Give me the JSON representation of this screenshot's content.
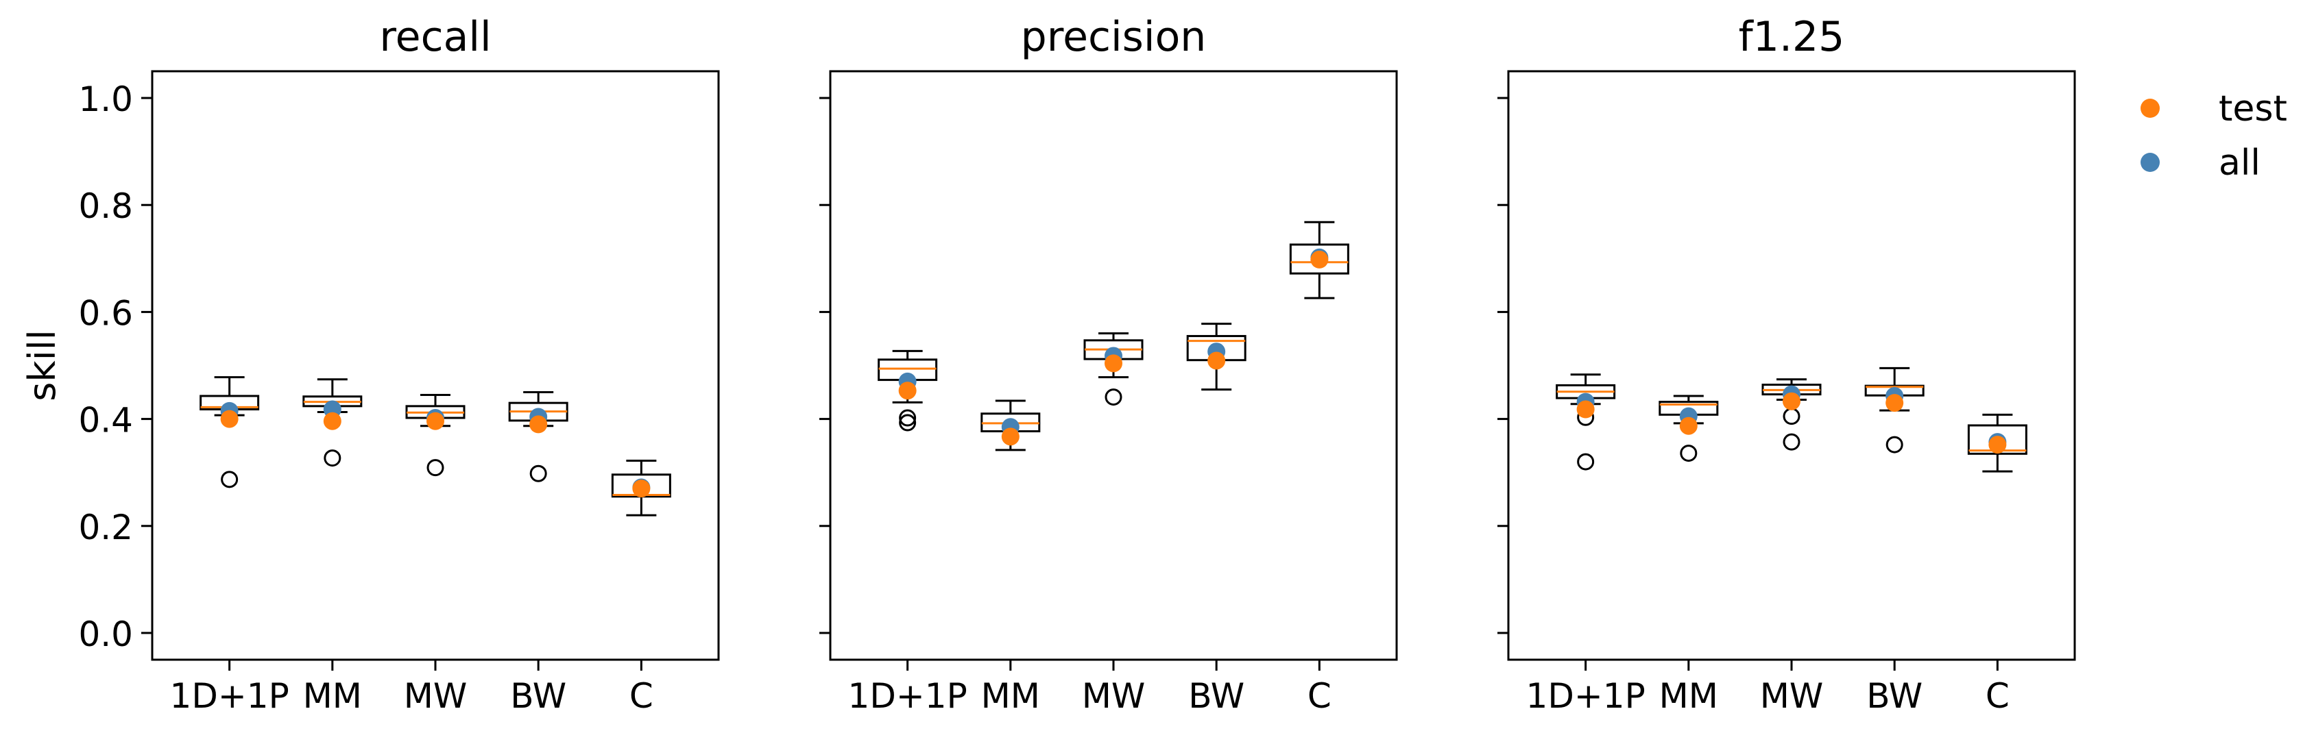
{
  "chart_data": [
    {
      "type": "box",
      "title": "recall",
      "ylabel": "skill",
      "ylim": [
        -0.05,
        1.05
      ],
      "yticks": [
        0.0,
        0.2,
        0.4,
        0.6,
        0.8,
        1.0
      ],
      "ytick_labels": [
        "0.0",
        "0.2",
        "0.4",
        "0.6",
        "0.8",
        "1.0"
      ],
      "categories": [
        "1D+1P",
        "MM",
        "MW",
        "BW",
        "C"
      ],
      "boxes": [
        {
          "whislo": 0.407,
          "q1": 0.418,
          "med": 0.422,
          "q3": 0.443,
          "whishi": 0.478,
          "fliers": [
            0.287
          ]
        },
        {
          "whislo": 0.413,
          "q1": 0.424,
          "med": 0.432,
          "q3": 0.442,
          "whishi": 0.474,
          "fliers": [
            0.327
          ]
        },
        {
          "whislo": 0.387,
          "q1": 0.402,
          "med": 0.412,
          "q3": 0.424,
          "whishi": 0.445,
          "fliers": [
            0.309
          ]
        },
        {
          "whislo": 0.387,
          "q1": 0.397,
          "med": 0.414,
          "q3": 0.43,
          "whishi": 0.45,
          "fliers": [
            0.298
          ]
        },
        {
          "whislo": 0.22,
          "q1": 0.255,
          "med": 0.258,
          "q3": 0.296,
          "whishi": 0.322,
          "fliers": []
        }
      ],
      "series": [
        {
          "name": "all",
          "values": [
            0.415,
            0.418,
            0.402,
            0.404,
            0.272
          ]
        },
        {
          "name": "test",
          "values": [
            0.4,
            0.396,
            0.396,
            0.39,
            0.27
          ]
        }
      ]
    },
    {
      "type": "box",
      "title": "precision",
      "ylabel": "",
      "ylim": [
        -0.05,
        1.05
      ],
      "yticks": [
        0.0,
        0.2,
        0.4,
        0.6,
        0.8,
        1.0
      ],
      "categories": [
        "1D+1P",
        "MM",
        "MW",
        "BW",
        "C"
      ],
      "boxes": [
        {
          "whislo": 0.431,
          "q1": 0.473,
          "med": 0.494,
          "q3": 0.511,
          "whishi": 0.527,
          "fliers": [
            0.393,
            0.402
          ]
        },
        {
          "whislo": 0.342,
          "q1": 0.377,
          "med": 0.392,
          "q3": 0.41,
          "whishi": 0.434,
          "fliers": []
        },
        {
          "whislo": 0.478,
          "q1": 0.512,
          "med": 0.53,
          "q3": 0.547,
          "whishi": 0.56,
          "fliers": [
            0.441
          ]
        },
        {
          "whislo": 0.455,
          "q1": 0.51,
          "med": 0.546,
          "q3": 0.555,
          "whishi": 0.578,
          "fliers": []
        },
        {
          "whislo": 0.626,
          "q1": 0.672,
          "med": 0.693,
          "q3": 0.726,
          "whishi": 0.768,
          "fliers": []
        }
      ],
      "series": [
        {
          "name": "all",
          "values": [
            0.47,
            0.385,
            0.518,
            0.526,
            0.702
          ]
        },
        {
          "name": "test",
          "values": [
            0.453,
            0.367,
            0.504,
            0.509,
            0.698
          ]
        }
      ]
    },
    {
      "type": "box",
      "title": "f1.25",
      "ylabel": "",
      "ylim": [
        -0.05,
        1.05
      ],
      "yticks": [
        0.0,
        0.2,
        0.4,
        0.6,
        0.8,
        1.0
      ],
      "categories": [
        "1D+1P",
        "MM",
        "MW",
        "BW",
        "C"
      ],
      "boxes": [
        {
          "whislo": 0.428,
          "q1": 0.439,
          "med": 0.451,
          "q3": 0.463,
          "whishi": 0.483,
          "fliers": [
            0.32,
            0.403
          ]
        },
        {
          "whislo": 0.392,
          "q1": 0.408,
          "med": 0.427,
          "q3": 0.432,
          "whishi": 0.443,
          "fliers": [
            0.336
          ]
        },
        {
          "whislo": 0.436,
          "q1": 0.446,
          "med": 0.454,
          "q3": 0.464,
          "whishi": 0.474,
          "fliers": [
            0.357,
            0.405
          ]
        },
        {
          "whislo": 0.416,
          "q1": 0.444,
          "med": 0.46,
          "q3": 0.462,
          "whishi": 0.495,
          "fliers": [
            0.352
          ]
        },
        {
          "whislo": 0.302,
          "q1": 0.335,
          "med": 0.341,
          "q3": 0.388,
          "whishi": 0.408,
          "fliers": []
        }
      ],
      "series": [
        {
          "name": "all",
          "values": [
            0.432,
            0.405,
            0.446,
            0.443,
            0.357
          ]
        },
        {
          "name": "test",
          "values": [
            0.418,
            0.387,
            0.433,
            0.43,
            0.352
          ]
        }
      ]
    }
  ],
  "legend": {
    "placement": "top-right, outside axes",
    "items": [
      {
        "label": "test",
        "color": "#ff7f0e"
      },
      {
        "label": "all",
        "color": "#4682b4"
      }
    ]
  },
  "colors": {
    "test": "#ff7f0e",
    "all": "#4682b4",
    "median": "#ff7f0e",
    "box": "#000000"
  }
}
